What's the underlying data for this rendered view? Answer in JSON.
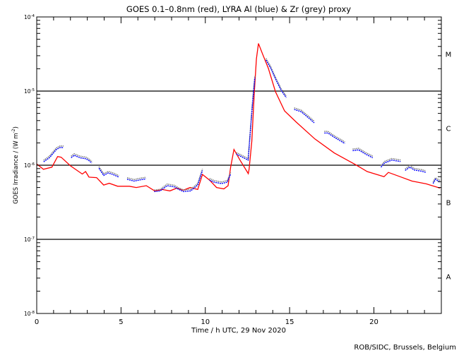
{
  "chart_data": {
    "type": "line",
    "title": "GOES 0.1–0.8nm (red), LYRA Al (blue) & Zr (grey) proxy",
    "xlabel": "Time / h UTC, 29 Nov 2020",
    "ylabel": "GOES Irradiance / (W m",
    "ylabel_sup": "-2",
    "ylabel_end": ")",
    "xlim": [
      0,
      24
    ],
    "ylim": [
      1e-08,
      0.0001
    ],
    "yscale": "log",
    "x_ticks": [
      {
        "v": 0,
        "label": "0"
      },
      {
        "v": 5,
        "label": "5"
      },
      {
        "v": 10,
        "label": "10"
      },
      {
        "v": 15,
        "label": "15"
      },
      {
        "v": 20,
        "label": "20"
      }
    ],
    "y_ticks": [
      {
        "exp": -4,
        "base": "10",
        "sup": "-4"
      },
      {
        "exp": -5,
        "base": "10",
        "sup": "-5"
      },
      {
        "exp": -6,
        "base": "10",
        "sup": "-6"
      },
      {
        "exp": -7,
        "base": "10",
        "sup": "-7"
      },
      {
        "exp": -8,
        "base": "10",
        "sup": "-8"
      }
    ],
    "class_lines": [
      1e-05,
      1e-06,
      1e-07
    ],
    "flare_classes": [
      {
        "label": "M",
        "exp": -4.5
      },
      {
        "label": "C",
        "exp": -5.5
      },
      {
        "label": "B",
        "exp": -6.5
      },
      {
        "label": "A",
        "exp": -7.5
      }
    ],
    "colors": {
      "goes": "#ff0000",
      "lyra_al": "#0000ff",
      "lyra_zr": "#808080"
    },
    "zr_offset_factor": 1.05,
    "series": [
      {
        "name": "GOES 0.1-0.8nm",
        "x": [
          0,
          0.4,
          0.9,
          1.24,
          1.45,
          2.0,
          2.7,
          2.9,
          3.1,
          3.55,
          3.97,
          4.3,
          4.8,
          5.5,
          5.9,
          6.5,
          7.0,
          7.45,
          7.9,
          8.3,
          8.7,
          9.1,
          9.55,
          9.83,
          10.25,
          10.67,
          11.1,
          11.35,
          11.5,
          11.7,
          12.06,
          12.55,
          12.6,
          12.76,
          12.9,
          13.03,
          13.15,
          13.4,
          13.74,
          14.16,
          14.7,
          15.4,
          16.5,
          17.65,
          18.9,
          19.6,
          20.6,
          20.86,
          21.56,
          22.26,
          23.1,
          23.93
        ],
        "y": [
          1.04e-06,
          8.8e-07,
          9.4e-07,
          1.31e-06,
          1.28e-06,
          9.8e-07,
          7.6e-07,
          8.2e-07,
          6.9e-07,
          6.8e-07,
          5.4e-07,
          5.7e-07,
          5.2e-07,
          5.2e-07,
          5e-07,
          5.3e-07,
          4.5e-07,
          4.7e-07,
          4.5e-07,
          4.9e-07,
          4.6e-07,
          5e-07,
          4.7e-07,
          7.5e-07,
          6.3e-07,
          5e-07,
          4.8e-07,
          5.3e-07,
          9.4e-07,
          1.63e-06,
          1.17e-06,
          7.7e-07,
          8.9e-07,
          2.1e-06,
          9.1e-06,
          2.72e-05,
          4.38e-05,
          3.15e-05,
          2.03e-05,
          9.8e-06,
          5.4e-06,
          3.8e-06,
          2.26e-06,
          1.46e-06,
          1.02e-06,
          8.2e-07,
          7e-07,
          8e-07,
          7e-07,
          6.1e-07,
          5.6e-07,
          4.9e-07
        ]
      },
      {
        "name": "LYRA Al proxy",
        "segments": [
          {
            "x": [
              0.41,
              0.75,
              1.17,
              1.38,
              1.59
            ],
            "y": [
              1.11e-06,
              1.26e-06,
              1.63e-06,
              1.73e-06,
              1.73e-06
            ]
          },
          {
            "x": [
              2.04,
              2.22,
              2.57,
              2.92,
              3.06,
              3.27
            ],
            "y": [
              1.26e-06,
              1.36e-06,
              1.26e-06,
              1.22e-06,
              1.17e-06,
              1.07e-06
            ]
          },
          {
            "x": [
              3.69,
              3.97,
              4.24,
              4.52,
              4.87
            ],
            "y": [
              9.1e-07,
              7.3e-07,
              7.85e-07,
              7.5e-07,
              6.9e-07
            ]
          },
          {
            "x": [
              5.36,
              5.78,
              6.06,
              6.48
            ],
            "y": [
              6.45e-07,
              6.1e-07,
              6.3e-07,
              6.55e-07
            ]
          },
          {
            "x": [
              6.97,
              7.32,
              7.74,
              8.16,
              8.43,
              8.71,
              9.13,
              9.55,
              9.83
            ],
            "y": [
              4.4e-07,
              4.5e-07,
              5.3e-07,
              5.1e-07,
              4.7e-07,
              4.4e-07,
              4.5e-07,
              5.4e-07,
              8.5e-07
            ]
          },
          {
            "x": [
              10.25,
              10.53,
              10.95,
              11.3,
              11.5
            ],
            "y": [
              6.3e-07,
              5.9e-07,
              5.65e-07,
              5.9e-07,
              7.6e-07
            ]
          },
          {
            "x": [
              11.84,
              12.54,
              12.8,
              12.94
            ],
            "y": [
              1.41e-06,
              1.17e-06,
              6.8e-06,
              1.52e-05
            ]
          },
          {
            "x": [
              13.6,
              13.88,
              14.16,
              14.5,
              14.8
            ],
            "y": [
              2.62e-05,
              2.03e-05,
              1.46e-05,
              1.02e-05,
              8.15e-06
            ]
          },
          {
            "x": [
              15.27,
              15.69,
              16.11,
              16.46
            ],
            "y": [
              5.65e-06,
              5.26e-06,
              4.37e-06,
              3.73e-06
            ]
          },
          {
            "x": [
              17.06,
              17.27,
              17.69,
              18.28
            ],
            "y": [
              2.72e-06,
              2.72e-06,
              2.35e-06,
              1.96e-06
            ]
          },
          {
            "x": [
              18.74,
              19.09,
              19.51,
              19.93
            ],
            "y": [
              1.57e-06,
              1.61e-06,
              1.41e-06,
              1.26e-06
            ]
          },
          {
            "x": [
              20.42,
              20.63,
              21.05,
              21.58
            ],
            "y": [
              9.4e-07,
              1.07e-06,
              1.17e-06,
              1.12e-06
            ]
          },
          {
            "x": [
              21.85,
              22.13,
              22.41,
              22.83,
              23.08
            ],
            "y": [
              8.5e-07,
              9.4e-07,
              8.6e-07,
              8.3e-07,
              8e-07
            ]
          },
          {
            "x": [
              23.51,
              23.65,
              23.93
            ],
            "y": [
              5.65e-07,
              6.45e-07,
              5.9e-07
            ]
          }
        ]
      }
    ],
    "credit": "ROB/SIDC, Brussels, Belgium"
  }
}
